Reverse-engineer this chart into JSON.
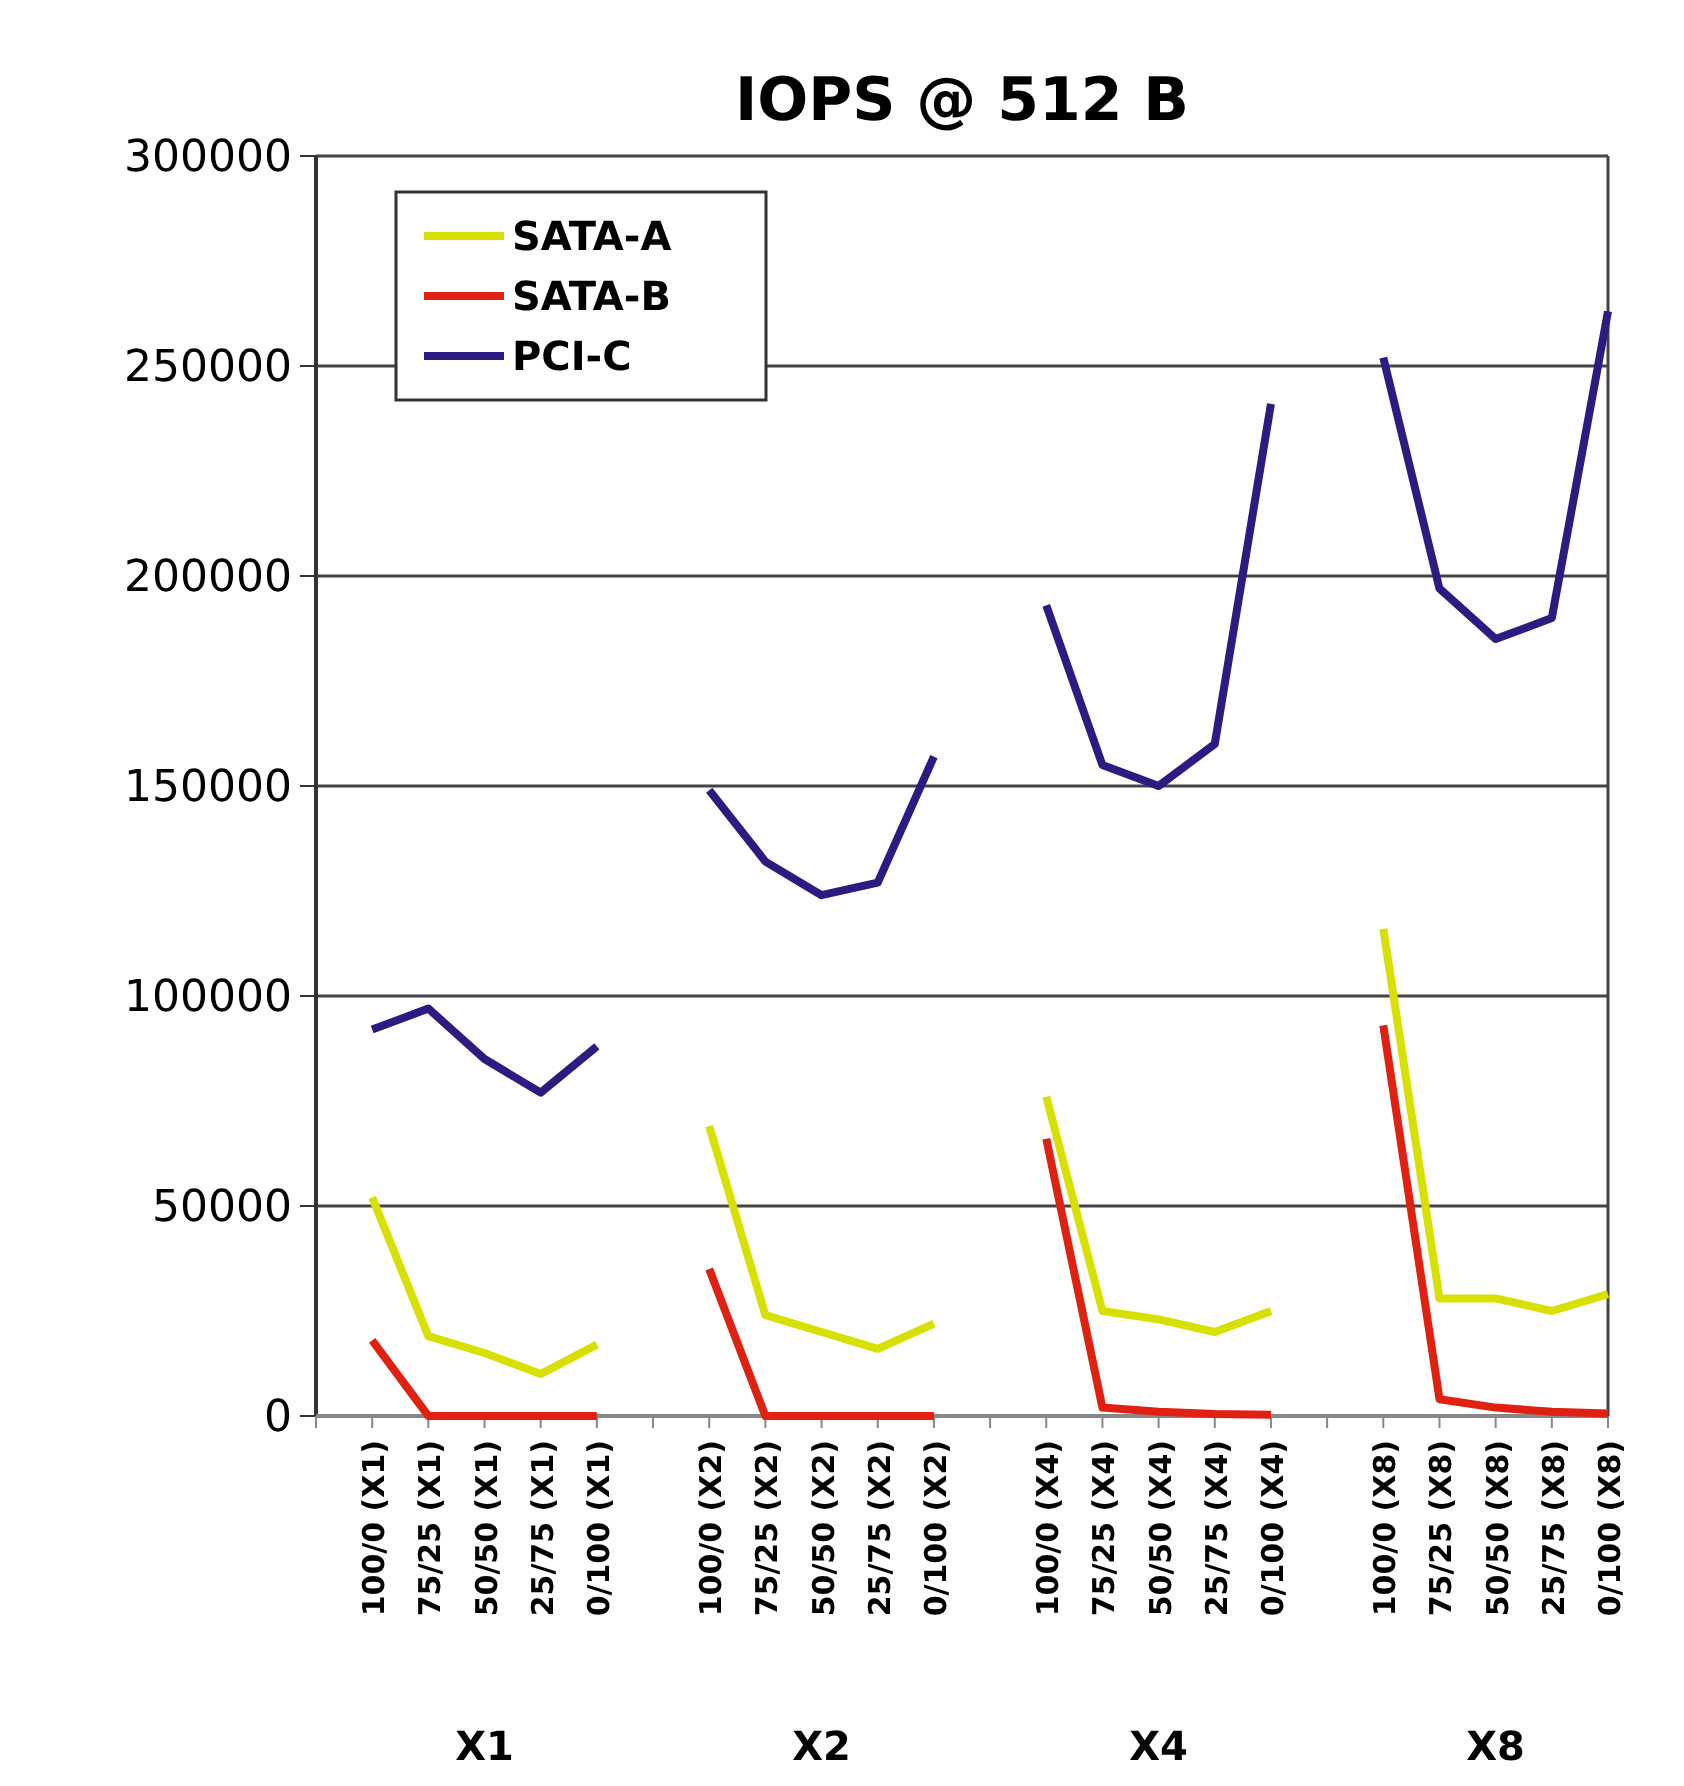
{
  "chart_data": {
    "type": "line",
    "title": "IOPS @ 512 B",
    "categories": [
      null,
      "100/0 (X1)",
      "75/25 (X1)",
      "50/50 (X1)",
      "25/75 (X1)",
      "0/100 (X1)",
      null,
      "100/0 (X2)",
      "75/25 (X2)",
      "50/50 (X2)",
      "25/75 (X2)",
      "0/100 (X2)",
      null,
      "100/0 (X4)",
      "75/25 (X4)",
      "50/50 (X4)",
      "25/75 (X4)",
      "0/100 (X4)",
      null,
      "100/0 (X8)",
      "75/25 (X8)",
      "50/50 (X8)",
      "25/75 (X8)",
      "0/100 (X8)"
    ],
    "series": [
      {
        "name": "SATA-A",
        "color": "#d8e000",
        "values": [
          null,
          52000,
          19000,
          15000,
          10000,
          17000,
          null,
          69000,
          24000,
          20000,
          16000,
          22000,
          null,
          76000,
          25000,
          23000,
          20000,
          25000,
          null,
          116000,
          28000,
          28000,
          25000,
          29000
        ]
      },
      {
        "name": "SATA-B",
        "color": "#e02010",
        "values": [
          null,
          18000,
          0,
          0,
          0,
          0,
          null,
          35000,
          0,
          0,
          0,
          0,
          null,
          66000,
          2000,
          1000,
          500,
          300,
          null,
          93000,
          4000,
          2000,
          1000,
          600
        ]
      },
      {
        "name": "PCI-C",
        "color": "#2e1a80",
        "values": [
          null,
          92000,
          97000,
          85000,
          77000,
          88000,
          null,
          149000,
          132000,
          124000,
          127000,
          157000,
          null,
          193000,
          155000,
          150000,
          160000,
          241000,
          null,
          252000,
          197000,
          185000,
          190000,
          263000
        ]
      }
    ],
    "ylim": [
      0,
      300000
    ],
    "yticks": [
      0,
      50000,
      100000,
      150000,
      200000,
      250000,
      300000
    ],
    "grid": "y",
    "legend": "top left",
    "marker": "none",
    "line_style": "solid",
    "annotations": [
      "X1",
      "X2",
      "X4",
      "X8"
    ]
  }
}
